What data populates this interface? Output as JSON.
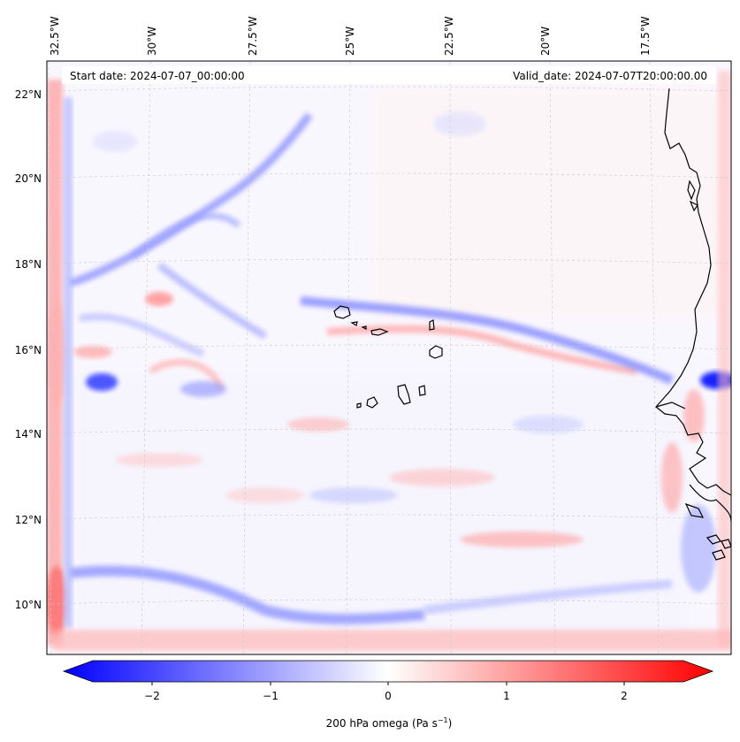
{
  "map": {
    "start_date_label": "Start date: 2024-07-07_00:00:00",
    "valid_date_label": "Valid_date: 2024-07-07T20:00:00.00",
    "lon_ticks": [
      "32.5°W",
      "30°W",
      "27.5°W",
      "25°W",
      "22.5°W",
      "20°W",
      "17.5°W"
    ],
    "lat_ticks": [
      "22°N",
      "20°N",
      "18°N",
      "16°N",
      "14°N",
      "12°N",
      "10°N"
    ],
    "field_colors": {
      "negative": "#0000ff",
      "zero": "#ffffff",
      "positive": "#ff0000"
    },
    "coastline_color": "#000000"
  },
  "colorbar": {
    "label_main": "200 hPa omega (Pa s",
    "label_exp": "−1",
    "label_close": ")",
    "ticks": [
      "−2",
      "−1",
      "0",
      "1",
      "2"
    ],
    "range": [
      -2.7,
      2.7
    ]
  }
}
